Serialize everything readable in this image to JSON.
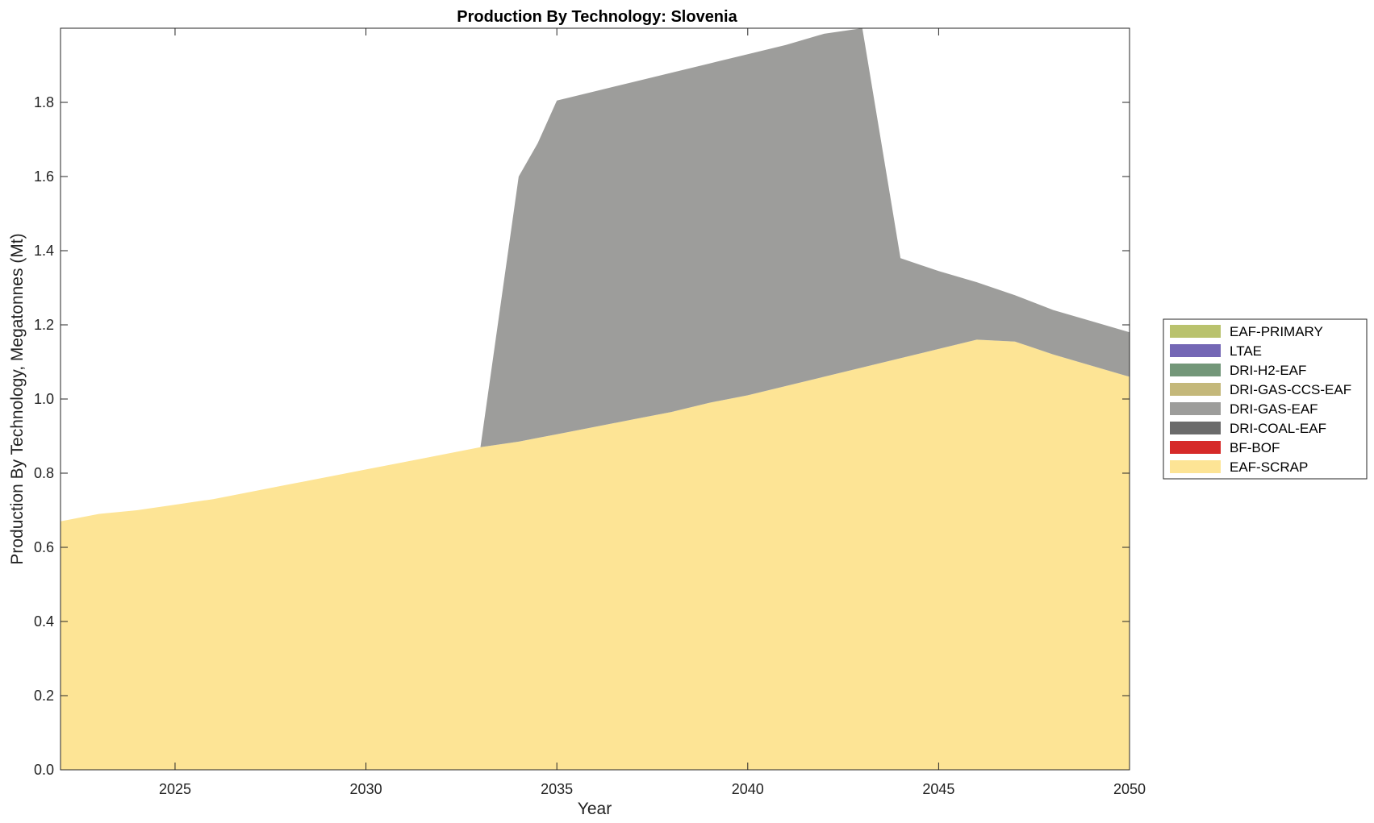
{
  "chart_data": {
    "type": "area",
    "stacked": true,
    "title": "Production By Technology: Slovenia",
    "xlabel": "Year",
    "ylabel": "Production By Technology, Megatonnes (Mt)",
    "xlim": [
      2022,
      2050
    ],
    "ylim": [
      0,
      2.0
    ],
    "xticks": [
      "2025",
      "2030",
      "2035",
      "2040",
      "2045",
      "2050"
    ],
    "yticks": [
      "0.0",
      "0.2",
      "0.4",
      "0.6",
      "0.8",
      "1.0",
      "1.2",
      "1.4",
      "1.6",
      "1.8"
    ],
    "legend_position": "right",
    "grid": false,
    "x": [
      2022,
      2023,
      2024,
      2025,
      2026,
      2027,
      2028,
      2029,
      2030,
      2031,
      2032,
      2033,
      2034,
      2034.5,
      2035,
      2036,
      2037,
      2038,
      2039,
      2040,
      2041,
      2042,
      2043,
      2044,
      2045,
      2046,
      2047,
      2048,
      2049,
      2050
    ],
    "series": [
      {
        "name": "EAF-SCRAP",
        "color": "#fde495",
        "values": [
          0.67,
          0.69,
          0.7,
          0.715,
          0.73,
          0.75,
          0.77,
          0.79,
          0.81,
          0.83,
          0.85,
          0.87,
          0.885,
          0.895,
          0.905,
          0.925,
          0.945,
          0.965,
          0.99,
          1.01,
          1.035,
          1.06,
          1.085,
          1.11,
          1.135,
          1.16,
          1.155,
          1.12,
          1.09,
          1.06
        ]
      },
      {
        "name": "BF-BOF",
        "color": "#d62a29",
        "values": [
          0,
          0,
          0,
          0,
          0,
          0,
          0,
          0,
          0,
          0,
          0,
          0,
          0,
          0,
          0,
          0,
          0,
          0,
          0,
          0,
          0,
          0,
          0,
          0,
          0,
          0,
          0,
          0,
          0,
          0
        ]
      },
      {
        "name": "DRI-COAL-EAF",
        "color": "#6b6b6b",
        "values": [
          0,
          0,
          0,
          0,
          0,
          0,
          0,
          0,
          0,
          0,
          0,
          0,
          0,
          0,
          0,
          0,
          0,
          0,
          0,
          0,
          0,
          0,
          0,
          0,
          0,
          0,
          0,
          0,
          0,
          0
        ]
      },
      {
        "name": "DRI-GAS-EAF",
        "color": "#9d9d9b",
        "values": [
          0,
          0,
          0,
          0,
          0,
          0,
          0,
          0,
          0,
          0,
          0,
          0,
          0.715,
          0.795,
          0.9,
          0.905,
          0.91,
          0.915,
          0.915,
          0.92,
          0.92,
          0.925,
          0.915,
          0.27,
          0.21,
          0.155,
          0.125,
          0.12,
          0.12,
          0.12
        ]
      },
      {
        "name": "DRI-GAS-CCS-EAF",
        "color": "#c4b87a",
        "values": [
          0,
          0,
          0,
          0,
          0,
          0,
          0,
          0,
          0,
          0,
          0,
          0,
          0,
          0,
          0,
          0,
          0,
          0,
          0,
          0,
          0,
          0,
          0,
          0,
          0,
          0,
          0,
          0,
          0,
          0
        ]
      },
      {
        "name": "DRI-H2-EAF",
        "color": "#739779",
        "values": [
          0,
          0,
          0,
          0,
          0,
          0,
          0,
          0,
          0,
          0,
          0,
          0,
          0,
          0,
          0,
          0,
          0,
          0,
          0,
          0,
          0,
          0,
          0,
          0,
          0,
          0,
          0,
          0,
          0,
          0
        ]
      },
      {
        "name": "LTAE",
        "color": "#7467b5",
        "values": [
          0,
          0,
          0,
          0,
          0,
          0,
          0,
          0,
          0,
          0,
          0,
          0,
          0,
          0,
          0,
          0,
          0,
          0,
          0,
          0,
          0,
          0,
          0,
          0,
          0,
          0,
          0,
          0,
          0,
          0
        ]
      },
      {
        "name": "EAF-PRIMARY",
        "color": "#b9c26d",
        "values": [
          0,
          0,
          0,
          0,
          0,
          0,
          0,
          0,
          0,
          0,
          0,
          0,
          0,
          0,
          0,
          0,
          0,
          0,
          0,
          0,
          0,
          0,
          0,
          0,
          0,
          0,
          0,
          0,
          0,
          0
        ]
      }
    ],
    "legend": [
      "EAF-PRIMARY",
      "LTAE",
      "DRI-H2-EAF",
      "DRI-GAS-CCS-EAF",
      "DRI-GAS-EAF",
      "DRI-COAL-EAF",
      "BF-BOF",
      "EAF-SCRAP"
    ]
  }
}
